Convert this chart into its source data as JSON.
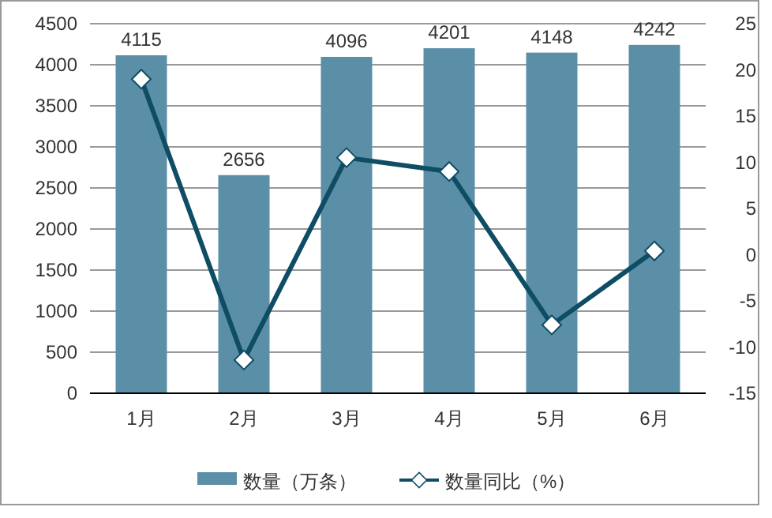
{
  "chart_data": {
    "type": "bar",
    "categories": [
      "1月",
      "2月",
      "3月",
      "4月",
      "5月",
      "6月"
    ],
    "series": [
      {
        "name": "数量（万条）",
        "color": "#5b8fa8",
        "values": [
          4115,
          2656,
          4096,
          4201,
          4148,
          4242
        ],
        "value_labels": [
          "4115",
          "2656",
          "4096",
          "4201",
          "4148",
          "4242"
        ]
      },
      {
        "name": "数量同比（%）",
        "type": "line",
        "axis": "y2",
        "color": "#0e4d64",
        "marker": "diamond",
        "values": [
          19.0,
          -11.4,
          10.5,
          9.0,
          -7.6,
          0.4
        ]
      }
    ],
    "ylim": [
      0,
      4500
    ],
    "yticks": [
      0,
      500,
      1000,
      1500,
      2000,
      2500,
      3000,
      3500,
      4000,
      4500
    ],
    "y2lim": [
      -15,
      25
    ],
    "y2ticks": [
      -15,
      -10,
      -5,
      0,
      5,
      10,
      15,
      20,
      25
    ],
    "grid": "y",
    "legend": "bottom"
  }
}
